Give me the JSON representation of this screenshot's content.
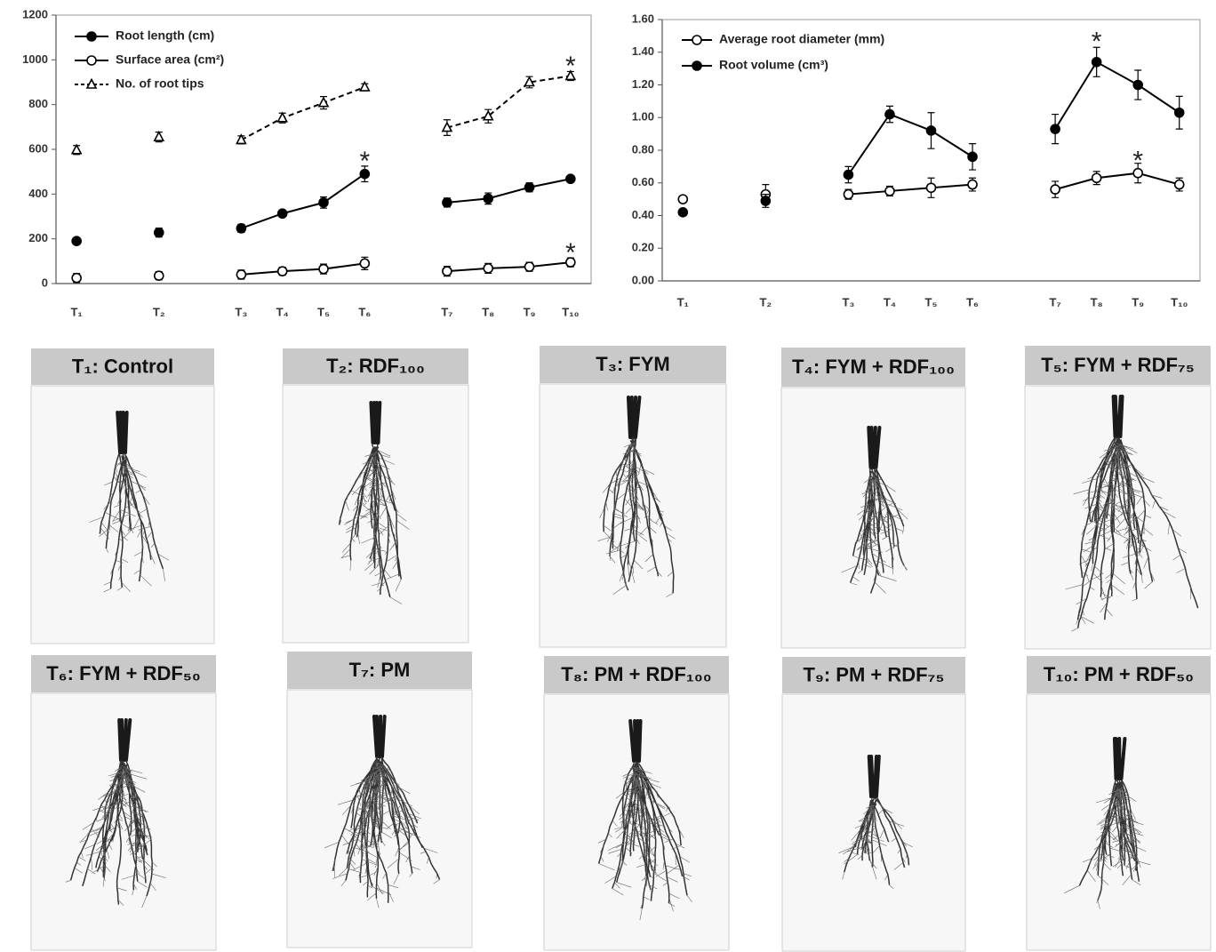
{
  "chart_data": [
    {
      "type": "line",
      "categories": [
        "T₁",
        null,
        "T₂",
        null,
        "T₃",
        "T₄",
        "T₅",
        "T₆",
        null,
        "T₇",
        "T₈",
        "T₉",
        "T₁₀"
      ],
      "ylim": [
        0,
        1200
      ],
      "yticks": [
        0,
        200,
        400,
        600,
        800,
        1000,
        1200
      ],
      "grid": false,
      "legend": "top-left",
      "series": [
        {
          "name": "Root length (cm)",
          "color": "#000000",
          "marker": "circle",
          "filled": true,
          "dashed": false,
          "values": [
            190,
            null,
            228,
            null,
            247,
            313,
            362,
            490,
            null,
            362,
            380,
            430,
            468
          ],
          "errors": [
            12,
            null,
            20,
            null,
            18,
            8,
            25,
            35,
            null,
            20,
            25,
            20,
            10
          ]
        },
        {
          "name": "Surface area (cm²)",
          "color": "#000000",
          "marker": "circle",
          "filled": false,
          "dashed": false,
          "values": [
            25,
            null,
            35,
            null,
            40,
            55,
            65,
            90,
            null,
            55,
            68,
            75,
            95
          ],
          "errors": [
            20,
            null,
            18,
            null,
            20,
            18,
            22,
            28,
            null,
            22,
            22,
            20,
            20
          ]
        },
        {
          "name": "No. of root tips",
          "color": "#000000",
          "marker": "triangle",
          "filled": false,
          "dashed": true,
          "values": [
            597,
            null,
            655,
            null,
            642,
            740,
            808,
            878,
            null,
            697,
            748,
            900,
            928
          ],
          "errors": [
            20,
            null,
            22,
            null,
            18,
            22,
            28,
            15,
            null,
            35,
            30,
            25,
            20
          ]
        }
      ],
      "annotations": [
        {
          "text": "*",
          "category": "T₆",
          "y": 572
        },
        {
          "text": "*",
          "category": "T₁₀",
          "y": 997
        },
        {
          "text": "*",
          "category": "T₁₀",
          "y": 163
        }
      ]
    },
    {
      "type": "line",
      "categories": [
        "T₁",
        null,
        "T₂",
        null,
        "T₃",
        "T₄",
        "T₅",
        "T₆",
        null,
        "T₇",
        "T₈",
        "T₉",
        "T₁₀"
      ],
      "ylim": [
        0,
        1.6
      ],
      "yticks": [
        {
          "value": 0,
          "label": "0.00"
        },
        {
          "value": 0.2,
          "label": "0.20"
        },
        {
          "value": 0.4,
          "label": "0.40"
        },
        {
          "value": 0.6,
          "label": "0.60"
        },
        {
          "value": 0.8,
          "label": "0.80"
        },
        {
          "value": 1,
          "label": "1.00"
        },
        {
          "value": 1.2,
          "label": "1.20"
        },
        {
          "value": 1.4,
          "label": "1.40"
        },
        {
          "value": 1.6,
          "label": "1.60"
        }
      ],
      "grid": false,
      "legend": "top-left",
      "series": [
        {
          "name": "Average root diameter (mm)",
          "color": "#000000",
          "marker": "circle",
          "filled": false,
          "dashed": false,
          "values": [
            0.5,
            null,
            0.53,
            null,
            0.53,
            0.55,
            0.57,
            0.59,
            null,
            0.56,
            0.63,
            0.66,
            0.59
          ],
          "errors": [
            0.01,
            null,
            0.06,
            null,
            0.03,
            0.03,
            0.06,
            0.04,
            null,
            0.05,
            0.04,
            0.06,
            0.04
          ]
        },
        {
          "name": "Root volume (cm³)",
          "color": "#000000",
          "marker": "circle",
          "filled": true,
          "dashed": false,
          "values": [
            0.42,
            null,
            0.49,
            null,
            0.65,
            1.02,
            0.92,
            0.76,
            null,
            0.93,
            1.34,
            1.2,
            1.03
          ],
          "errors": [
            0.01,
            null,
            0.04,
            null,
            0.05,
            0.05,
            0.11,
            0.08,
            null,
            0.09,
            0.09,
            0.09,
            0.1
          ]
        }
      ],
      "annotations": [
        {
          "text": "*",
          "category": "T₈",
          "y": 1.5
        },
        {
          "text": "*",
          "category": "T₉",
          "y": 0.77
        }
      ]
    }
  ],
  "panels": [
    "T₁: Control",
    "T₂: RDF₁₀₀",
    "T₃: FYM",
    "T₄: FYM + RDF₁₀₀",
    "T₅: FYM + RDF₇₅",
    "T₆: FYM + RDF₅₀",
    "T₇: PM",
    "T₈: PM + RDF₁₀₀",
    "T₉: PM + RDF₇₅",
    "T₁₀: PM + RDF₅₀"
  ]
}
